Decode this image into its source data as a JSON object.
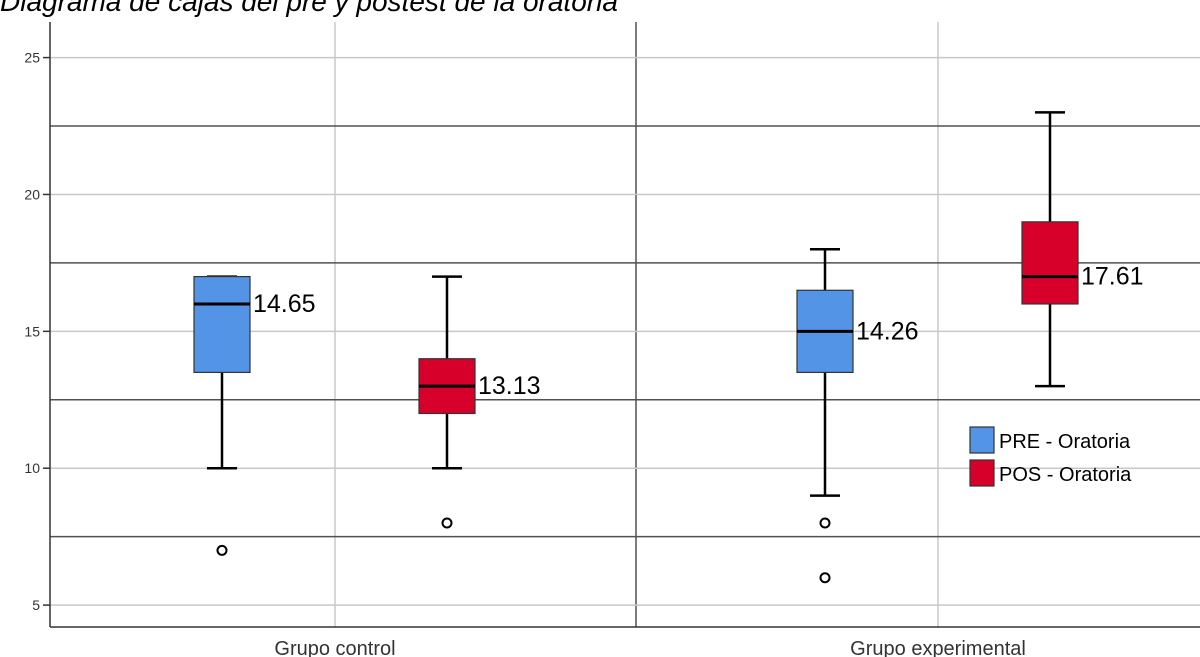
{
  "title": "Diagrama de cajas del pre y postest de la oratoria",
  "chart_data": {
    "type": "boxplot",
    "categories": [
      "Grupo control",
      "Grupo experimental"
    ],
    "series": [
      {
        "name": "PRE - Oratoria",
        "color": "#5394e6",
        "boxes": [
          {
            "category": "Grupo control",
            "whisker_low": 10,
            "q1": 13.5,
            "median": 16,
            "q3": 17,
            "whisker_high": 17,
            "outliers": [
              7
            ],
            "annotation": "14.65"
          },
          {
            "category": "Grupo experimental",
            "whisker_low": 9,
            "q1": 13.5,
            "median": 15,
            "q3": 16.5,
            "whisker_high": 18,
            "outliers": [
              8,
              6
            ],
            "annotation": "14.26"
          }
        ]
      },
      {
        "name": "POS - Oratoria",
        "color": "#d6002a",
        "boxes": [
          {
            "category": "Grupo control",
            "whisker_low": 10,
            "q1": 12,
            "median": 13,
            "q3": 14,
            "whisker_high": 17,
            "outliers": [
              8
            ],
            "annotation": "13.13"
          },
          {
            "category": "Grupo experimental",
            "whisker_low": 13,
            "q1": 16,
            "median": 17,
            "q3": 19,
            "whisker_high": 23,
            "outliers": [],
            "annotation": "17.61"
          }
        ]
      }
    ],
    "yticks": [
      5,
      10,
      15,
      20,
      25
    ],
    "ylim": [
      4.2,
      26.3
    ],
    "grid": true,
    "legend_position": "right",
    "legend": [
      "PRE - Oratoria",
      "POS - Oratoria"
    ]
  }
}
